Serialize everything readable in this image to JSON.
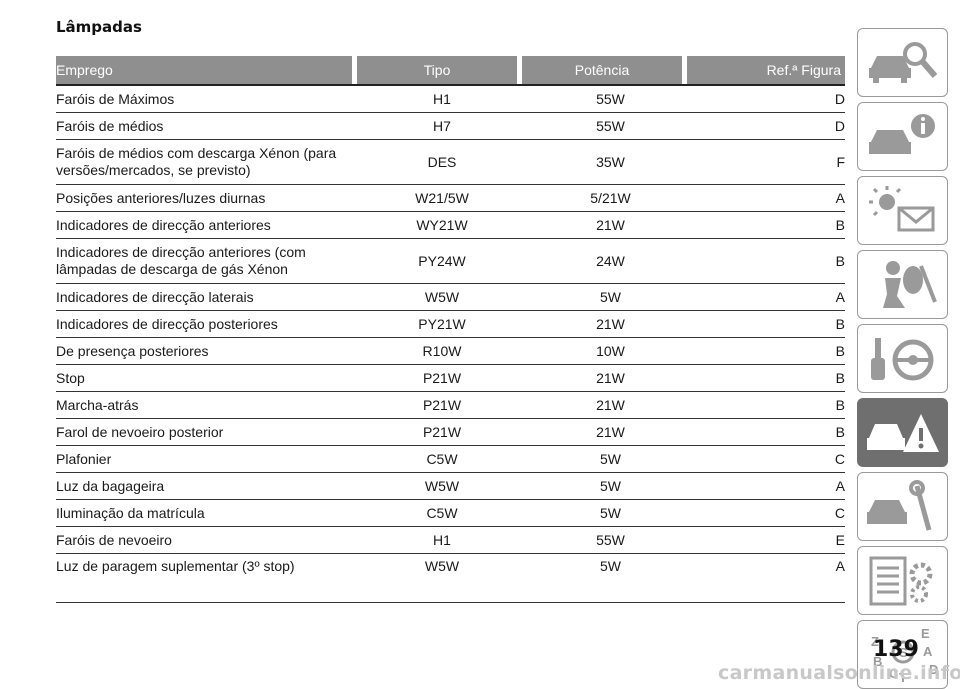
{
  "section_title": "Lâmpadas",
  "table": {
    "headers": [
      "Emprego",
      "Tipo",
      "Potência",
      "Ref.ª Figura"
    ],
    "rows": [
      {
        "emprego": "Faróis de Máximos",
        "tipo": "H1",
        "potencia": "55W",
        "ref": "D"
      },
      {
        "emprego": "Faróis de médios",
        "tipo": "H7",
        "potencia": "55W",
        "ref": "D"
      },
      {
        "emprego": "Faróis de médios com descarga Xénon (para versões/mercados, se previsto)",
        "tipo": "DES",
        "potencia": "35W",
        "ref": "F"
      },
      {
        "emprego": "Posições anteriores/luzes diurnas",
        "tipo": "W21/5W",
        "potencia": "5/21W",
        "ref": "A"
      },
      {
        "emprego": "Indicadores de direcção anteriores",
        "tipo": "WY21W",
        "potencia": "21W",
        "ref": "B"
      },
      {
        "emprego": "Indicadores de direcção anteriores (com lâmpadas de descarga de gás Xénon",
        "tipo": "PY24W",
        "potencia": "24W",
        "ref": "B"
      },
      {
        "emprego": "Indicadores de direcção laterais",
        "tipo": "W5W",
        "potencia": "5W",
        "ref": "A"
      },
      {
        "emprego": "Indicadores de direcção posteriores",
        "tipo": "PY21W",
        "potencia": "21W",
        "ref": "B"
      },
      {
        "emprego": "De presença posteriores",
        "tipo": "R10W",
        "potencia": "10W",
        "ref": "B"
      },
      {
        "emprego": "Stop",
        "tipo": "P21W",
        "potencia": "21W",
        "ref": "B"
      },
      {
        "emprego": "Marcha-atrás",
        "tipo": "P21W",
        "potencia": "21W",
        "ref": "B"
      },
      {
        "emprego": "Farol de nevoeiro posterior",
        "tipo": "P21W",
        "potencia": "21W",
        "ref": "B"
      },
      {
        "emprego": "Plafonier",
        "tipo": "C5W",
        "potencia": "5W",
        "ref": "C"
      },
      {
        "emprego": "Luz da bagageira",
        "tipo": "W5W",
        "potencia": "5W",
        "ref": "A"
      },
      {
        "emprego": "Iluminação da matrícula",
        "tipo": "C5W",
        "potencia": "5W",
        "ref": "C"
      },
      {
        "emprego": "Faróis de nevoeiro",
        "tipo": "H1",
        "potencia": "55W",
        "ref": "E"
      },
      {
        "emprego": "Luz de paragem suplementar (3º stop)",
        "tipo": "W5W",
        "potencia": "5W",
        "ref": "A"
      }
    ]
  },
  "side_tabs": [
    {
      "icon": "car-search-icon",
      "active": false
    },
    {
      "icon": "car-info-icon",
      "active": false
    },
    {
      "icon": "light-envelope-icon",
      "active": false
    },
    {
      "icon": "airbag-person-icon",
      "active": false
    },
    {
      "icon": "key-steering-wheel-icon",
      "active": false
    },
    {
      "icon": "car-warning-triangle-icon",
      "active": true
    },
    {
      "icon": "car-wrench-icon",
      "active": false
    },
    {
      "icon": "checklist-gear-icon",
      "active": false
    },
    {
      "icon": "alphabet-index-icon",
      "active": false
    }
  ],
  "page_number": "139",
  "watermark": "carmanualsonline.info",
  "colors": {
    "header_bg": "#8f8f8f",
    "tab_border": "#9a9a9a",
    "tab_active": "#6f6f6f",
    "watermark": "#c8c8c8"
  }
}
